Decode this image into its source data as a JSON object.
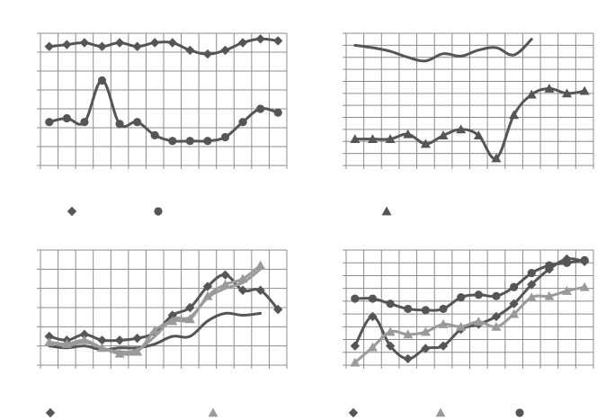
{
  "colors": {
    "grid": "#8c8c8c",
    "dark": "#555555",
    "light": "#9a9a9a",
    "background": "#ffffff"
  },
  "chart_data": [
    {
      "type": "line",
      "title": "",
      "xlabel": "",
      "ylabel": "",
      "ylim": [
        0,
        7
      ],
      "x": [
        1,
        2,
        3,
        4,
        5,
        6,
        7,
        8,
        9,
        10,
        11,
        12,
        13,
        14
      ],
      "grid": true,
      "legend_placement": "bottom",
      "series": [
        {
          "marker": "diamond",
          "color": "dark",
          "values": [
            6.3,
            6.4,
            6.5,
            6.3,
            6.5,
            6.3,
            6.5,
            6.5,
            6.1,
            5.9,
            6.1,
            6.5,
            6.7,
            6.6
          ]
        },
        {
          "marker": "circle",
          "color": "dark",
          "values": [
            2.3,
            2.5,
            2.3,
            4.5,
            2.2,
            2.3,
            1.6,
            1.3,
            1.3,
            1.3,
            1.5,
            2.3,
            3.0,
            2.8
          ]
        }
      ]
    },
    {
      "type": "line",
      "title": "",
      "xlabel": "",
      "ylabel": "",
      "ylim": [
        0,
        11
      ],
      "x": [
        1,
        2,
        3,
        4,
        5,
        6,
        7,
        8,
        9,
        10,
        11,
        12,
        13,
        14
      ],
      "grid": true,
      "legend_placement": "bottom",
      "series": [
        {
          "marker": "none",
          "color": "dark",
          "values": [
            10.0,
            9.8,
            9.5,
            9.0,
            8.7,
            9.3,
            9.1,
            9.6,
            9.8,
            9.2,
            10.5,
            null,
            null,
            null
          ]
        },
        {
          "marker": "triangle",
          "color": "dark",
          "values": [
            2.2,
            2.2,
            2.2,
            2.6,
            1.8,
            2.5,
            3.0,
            2.5,
            0.6,
            4.2,
            5.9,
            6.4,
            6.0,
            6.2
          ]
        }
      ]
    },
    {
      "type": "line",
      "title": "",
      "xlabel": "",
      "ylabel": "",
      "ylim": [
        0,
        6
      ],
      "x": [
        1,
        2,
        3,
        4,
        5,
        6,
        7,
        8,
        9,
        10,
        11,
        12,
        13,
        14
      ],
      "grid": true,
      "legend_placement": "bottom",
      "series": [
        {
          "marker": "diamond",
          "color": "dark",
          "values": [
            1.5,
            1.3,
            1.6,
            1.3,
            1.3,
            1.4,
            1.7,
            2.6,
            3.0,
            4.1,
            4.7,
            3.9,
            3.9,
            2.9
          ]
        },
        {
          "marker": "none",
          "color": "dark",
          "values": [
            1.0,
            0.9,
            1.0,
            0.8,
            0.9,
            0.9,
            1.1,
            1.5,
            1.5,
            2.3,
            2.7,
            2.6,
            2.7,
            null
          ]
        },
        {
          "marker": "triangle",
          "color": "light",
          "values": [
            1.2,
            1.1,
            1.3,
            0.9,
            0.6,
            0.7,
            1.8,
            2.3,
            2.4,
            3.6,
            4.2,
            4.5,
            5.2,
            null
          ]
        },
        {
          "marker": "none",
          "color": "light",
          "values": [
            1.2,
            1.0,
            1.2,
            0.9,
            0.7,
            0.8,
            1.5,
            2.4,
            2.5,
            3.5,
            4.0,
            4.3,
            5.0,
            null
          ]
        }
      ]
    },
    {
      "type": "line",
      "title": "",
      "xlabel": "",
      "ylabel": "",
      "ylim": [
        0,
        9
      ],
      "x": [
        1,
        2,
        3,
        4,
        5,
        6,
        7,
        8,
        9,
        10,
        11,
        12,
        13,
        14
      ],
      "grid": true,
      "legend_placement": "bottom",
      "series": [
        {
          "marker": "diamond",
          "color": "dark",
          "values": [
            1.5,
            3.8,
            1.5,
            0.5,
            1.3,
            1.5,
            2.8,
            3.2,
            3.8,
            4.8,
            6.3,
            7.5,
            8.3,
            8.1
          ]
        },
        {
          "marker": "triangle",
          "color": "light",
          "values": [
            0.2,
            1.4,
            2.6,
            2.4,
            2.6,
            3.2,
            3.0,
            3.4,
            3.0,
            4.0,
            5.3,
            5.4,
            5.8,
            6.1
          ]
        },
        {
          "marker": "circle",
          "color": "dark",
          "values": [
            5.2,
            5.2,
            4.8,
            4.4,
            4.3,
            4.4,
            5.3,
            5.5,
            5.4,
            6.1,
            7.2,
            7.8,
            8.0,
            8.2
          ]
        }
      ]
    }
  ]
}
